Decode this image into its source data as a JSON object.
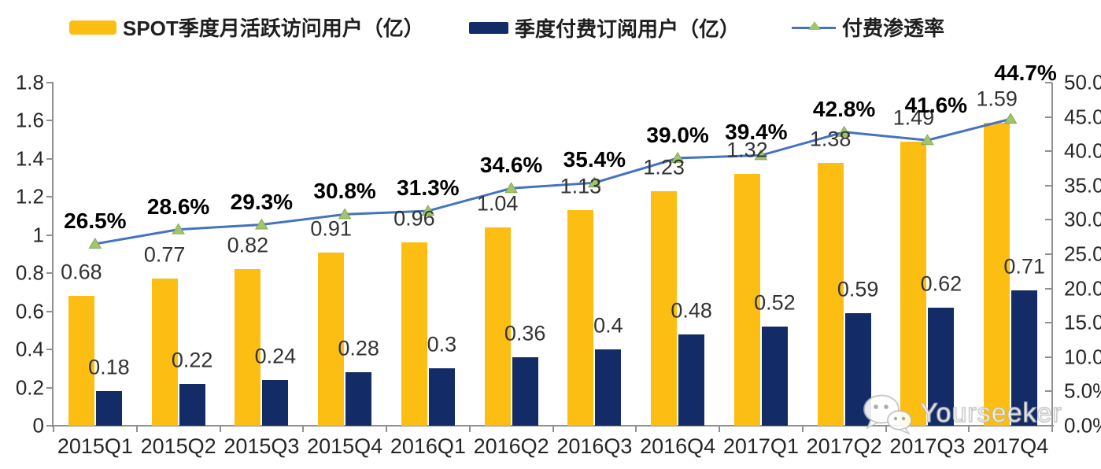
{
  "legend": {
    "items": [
      {
        "label": "SPOT季度月活跃访问用户（亿）",
        "marker": "bar-swatch",
        "color": "#FCBE12"
      },
      {
        "label": "季度付费订阅用户（亿）",
        "marker": "bar-swatch",
        "color": "#132B66"
      },
      {
        "label": "付费渗透率",
        "marker": "line-swatch",
        "color": "#4472C4",
        "marker_color": "#A2C46C"
      }
    ]
  },
  "chart_data": {
    "type": "combo-bar-line",
    "legend_position": "top",
    "grid": false,
    "categories": [
      "2015Q1",
      "2015Q2",
      "2015Q3",
      "2015Q4",
      "2016Q1",
      "2016Q2",
      "2016Q3",
      "2016Q4",
      "2017Q1",
      "2017Q2",
      "2017Q3",
      "2017Q4"
    ],
    "series": [
      {
        "name": "SPOT季度月活跃访问用户（亿）",
        "type": "bar",
        "axis": "left",
        "color": "#FCBE12",
        "values": [
          0.68,
          0.77,
          0.82,
          0.91,
          0.96,
          1.04,
          1.13,
          1.23,
          1.32,
          1.38,
          1.49,
          1.59
        ],
        "labels": [
          "0.68",
          "0.77",
          "0.82",
          "0.91",
          "0.96",
          "1.04",
          "1.13",
          "1.23",
          "1.32",
          "1.38",
          "1.49",
          "1.59"
        ]
      },
      {
        "name": "季度付费订阅用户（亿）",
        "type": "bar",
        "axis": "left",
        "color": "#132B66",
        "values": [
          0.18,
          0.22,
          0.24,
          0.28,
          0.3,
          0.36,
          0.4,
          0.48,
          0.52,
          0.59,
          0.62,
          0.71
        ],
        "labels": [
          "0.18",
          "0.22",
          "0.24",
          "0.28",
          "0.3",
          "0.36",
          "0.4",
          "0.48",
          "0.52",
          "0.59",
          "0.62",
          "0.71"
        ]
      },
      {
        "name": "付费渗透率",
        "type": "line",
        "axis": "right",
        "color": "#4472C4",
        "marker_color": "#A2C46C",
        "marker_edge": "#86A854",
        "values": [
          26.5,
          28.6,
          29.3,
          30.8,
          31.3,
          34.6,
          35.4,
          39.0,
          39.4,
          42.8,
          41.6,
          44.7
        ],
        "labels": [
          "26.5%",
          "28.6%",
          "29.3%",
          "30.8%",
          "31.3%",
          "34.6%",
          "35.4%",
          "39.0%",
          "39.4%",
          "42.8%",
          "41.6%",
          "44.7%"
        ],
        "label_offsets": [
          [
            0,
            -29
          ],
          [
            0,
            -29
          ],
          [
            0,
            -29
          ],
          [
            0,
            -29
          ],
          [
            0,
            -29
          ],
          [
            0,
            -29
          ],
          [
            0,
            -29
          ],
          [
            0,
            -29
          ],
          [
            -6,
            -29
          ],
          [
            0,
            -29
          ],
          [
            11,
            -44
          ],
          [
            19,
            -58
          ]
        ]
      }
    ],
    "left_axis": {
      "min": 0,
      "max": 1.8,
      "step": 0.2,
      "tick_labels": [
        "0",
        "0.2",
        "0.4",
        "0.6",
        "0.8",
        "1",
        "1.2",
        "1.4",
        "1.6",
        "1.8"
      ]
    },
    "right_axis": {
      "min": 0,
      "max": 50,
      "step": 5,
      "tick_labels": [
        "0.0%",
        "5.0%",
        "10.0%",
        "15.0%",
        "20.0%",
        "25.0%",
        "30.0%",
        "35.0%",
        "40.0%",
        "45.0%",
        "50.0%"
      ]
    }
  },
  "watermark": {
    "text": "Yourseeker",
    "icon": "wechat-icon"
  }
}
